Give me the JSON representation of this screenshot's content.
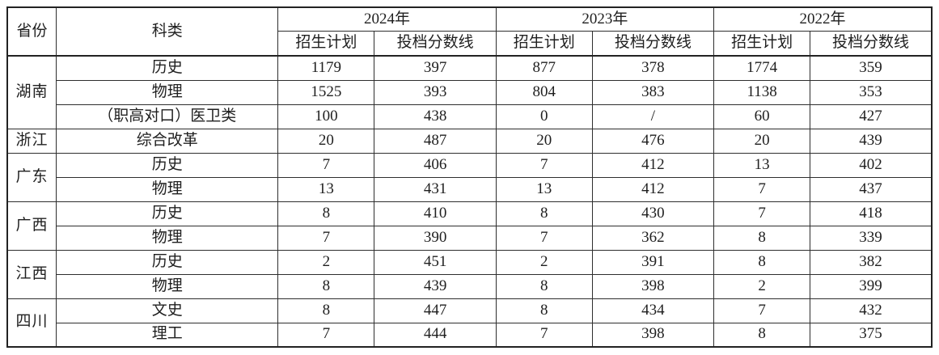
{
  "table": {
    "header": {
      "province_label": "省份",
      "category_label": "科类",
      "year_groups": [
        {
          "year": "2024年",
          "sub": [
            "招生计划",
            "投档分数线"
          ]
        },
        {
          "year": "2023年",
          "sub": [
            "招生计划",
            "投档分数线"
          ]
        },
        {
          "year": "2022年",
          "sub": [
            "招生计划",
            "投档分数线"
          ]
        }
      ]
    },
    "groups": [
      {
        "province": "湖南",
        "rows": [
          {
            "category": "历史",
            "values": [
              "1179",
              "397",
              "877",
              "378",
              "1774",
              "359"
            ]
          },
          {
            "category": "物理",
            "values": [
              "1525",
              "393",
              "804",
              "383",
              "1138",
              "353"
            ]
          },
          {
            "category": "（职高对口）医卫类",
            "values": [
              "100",
              "438",
              "0",
              "/",
              "60",
              "427"
            ]
          }
        ]
      },
      {
        "province": "浙江",
        "rows": [
          {
            "category": "综合改革",
            "values": [
              "20",
              "487",
              "20",
              "476",
              "20",
              "439"
            ]
          }
        ]
      },
      {
        "province": "广东",
        "rows": [
          {
            "category": "历史",
            "values": [
              "7",
              "406",
              "7",
              "412",
              "13",
              "402"
            ]
          },
          {
            "category": "物理",
            "values": [
              "13",
              "431",
              "13",
              "412",
              "7",
              "437"
            ]
          }
        ]
      },
      {
        "province": "广西",
        "rows": [
          {
            "category": "历史",
            "values": [
              "8",
              "410",
              "8",
              "430",
              "7",
              "418"
            ]
          },
          {
            "category": "物理",
            "values": [
              "7",
              "390",
              "7",
              "362",
              "8",
              "339"
            ]
          }
        ]
      },
      {
        "province": "江西",
        "rows": [
          {
            "category": "历史",
            "values": [
              "2",
              "451",
              "2",
              "391",
              "8",
              "382"
            ]
          },
          {
            "category": "物理",
            "values": [
              "8",
              "439",
              "8",
              "398",
              "2",
              "399"
            ]
          }
        ]
      },
      {
        "province": "四川",
        "rows": [
          {
            "category": "文史",
            "values": [
              "8",
              "447",
              "8",
              "434",
              "7",
              "432"
            ]
          },
          {
            "category": "理工",
            "values": [
              "7",
              "444",
              "7",
              "398",
              "8",
              "375"
            ]
          }
        ]
      }
    ]
  },
  "colors": {
    "border": "#2e2e2e",
    "text": "#1f1f1f",
    "background": "#ffffff"
  }
}
